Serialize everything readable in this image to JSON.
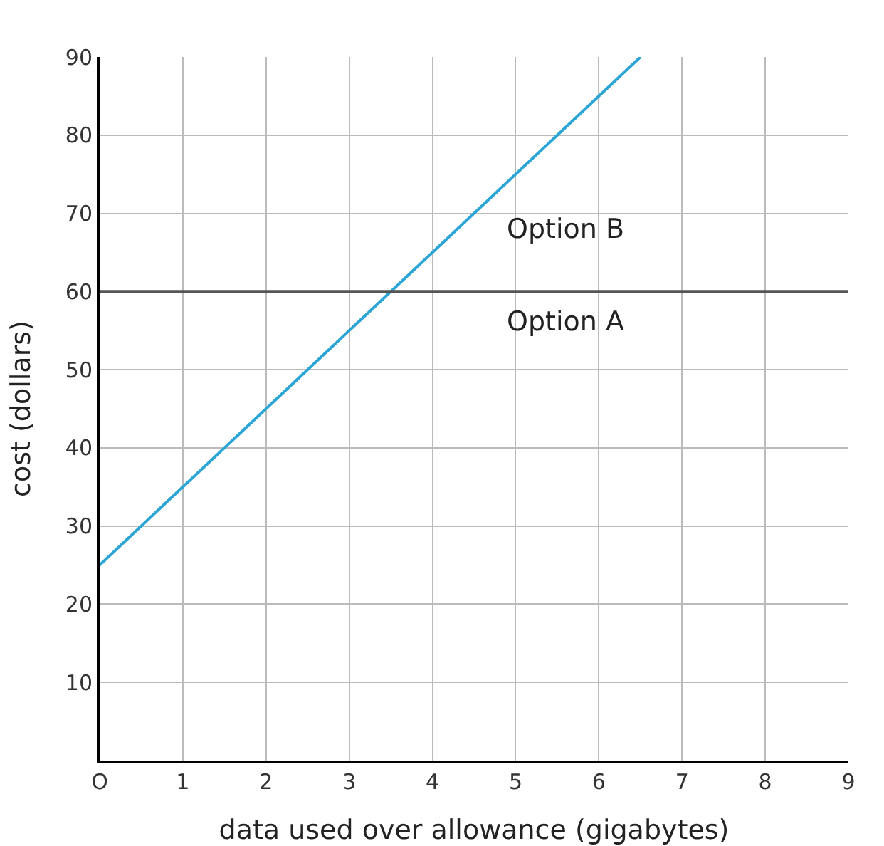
{
  "chart_data": {
    "type": "line",
    "xlabel": "data used over allowance (gigabytes)",
    "ylabel": "cost (dollars)",
    "xlim": [
      0,
      9
    ],
    "ylim": [
      0,
      90
    ],
    "xticks": [
      {
        "value": 0,
        "label": "O"
      },
      1,
      2,
      3,
      4,
      5,
      6,
      7,
      8,
      9
    ],
    "yticks": [
      10,
      20,
      30,
      40,
      50,
      60,
      70,
      80,
      90
    ],
    "grid": true,
    "marker": "none",
    "line_style": "solid",
    "series": [
      {
        "name": "Option B",
        "color": "#2aa5d6",
        "x": [
          0,
          6.5
        ],
        "values": [
          25,
          90
        ]
      },
      {
        "name": "Option A",
        "color": "#555555",
        "x": [
          0,
          9
        ],
        "values": [
          60,
          60
        ]
      }
    ]
  }
}
